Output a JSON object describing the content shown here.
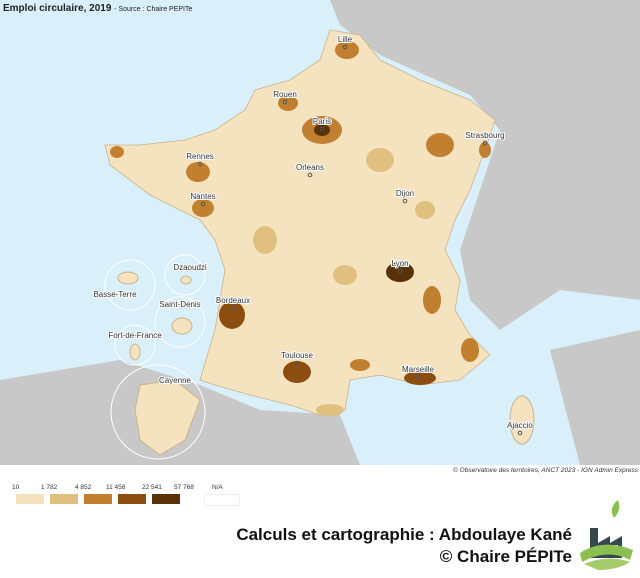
{
  "title": "Emploi circulaire, 2019",
  "source": "- Source : Chaire PEPITe",
  "credit": "© Observatoire des territoires, ANCT 2023 - IGN Admin Express",
  "colors": {
    "sea": "#d9f0fb",
    "land": "#c8c8c8",
    "classes": [
      "#f5e3c0",
      "#dfc07e",
      "#c0802f",
      "#8c4e10",
      "#5a3207"
    ],
    "na": "#ffffff"
  },
  "legend": {
    "breaks": [
      "10",
      "1 782",
      "4 852",
      "11 458",
      "22 541",
      "57 768"
    ],
    "na_label": "N/A"
  },
  "cities": [
    "Lille",
    "Rouen",
    "Paris",
    "Strasbourg",
    "Rennes",
    "Orleans",
    "Nantes",
    "Dijon",
    "Lyon",
    "Bordeaux",
    "Toulouse",
    "Marseille",
    "Ajaccio"
  ],
  "overseas": [
    "Dzaoudzi",
    "Basse-Terre",
    "Saint-Denis",
    "Fort-de-France",
    "Cayenne"
  ],
  "signature": {
    "line1": "Calculs et cartographie : Abdoulaye Kané",
    "line2": "© Chaire PÉPITe"
  },
  "logo": "Chaire PEPITe factory-leaf logo"
}
